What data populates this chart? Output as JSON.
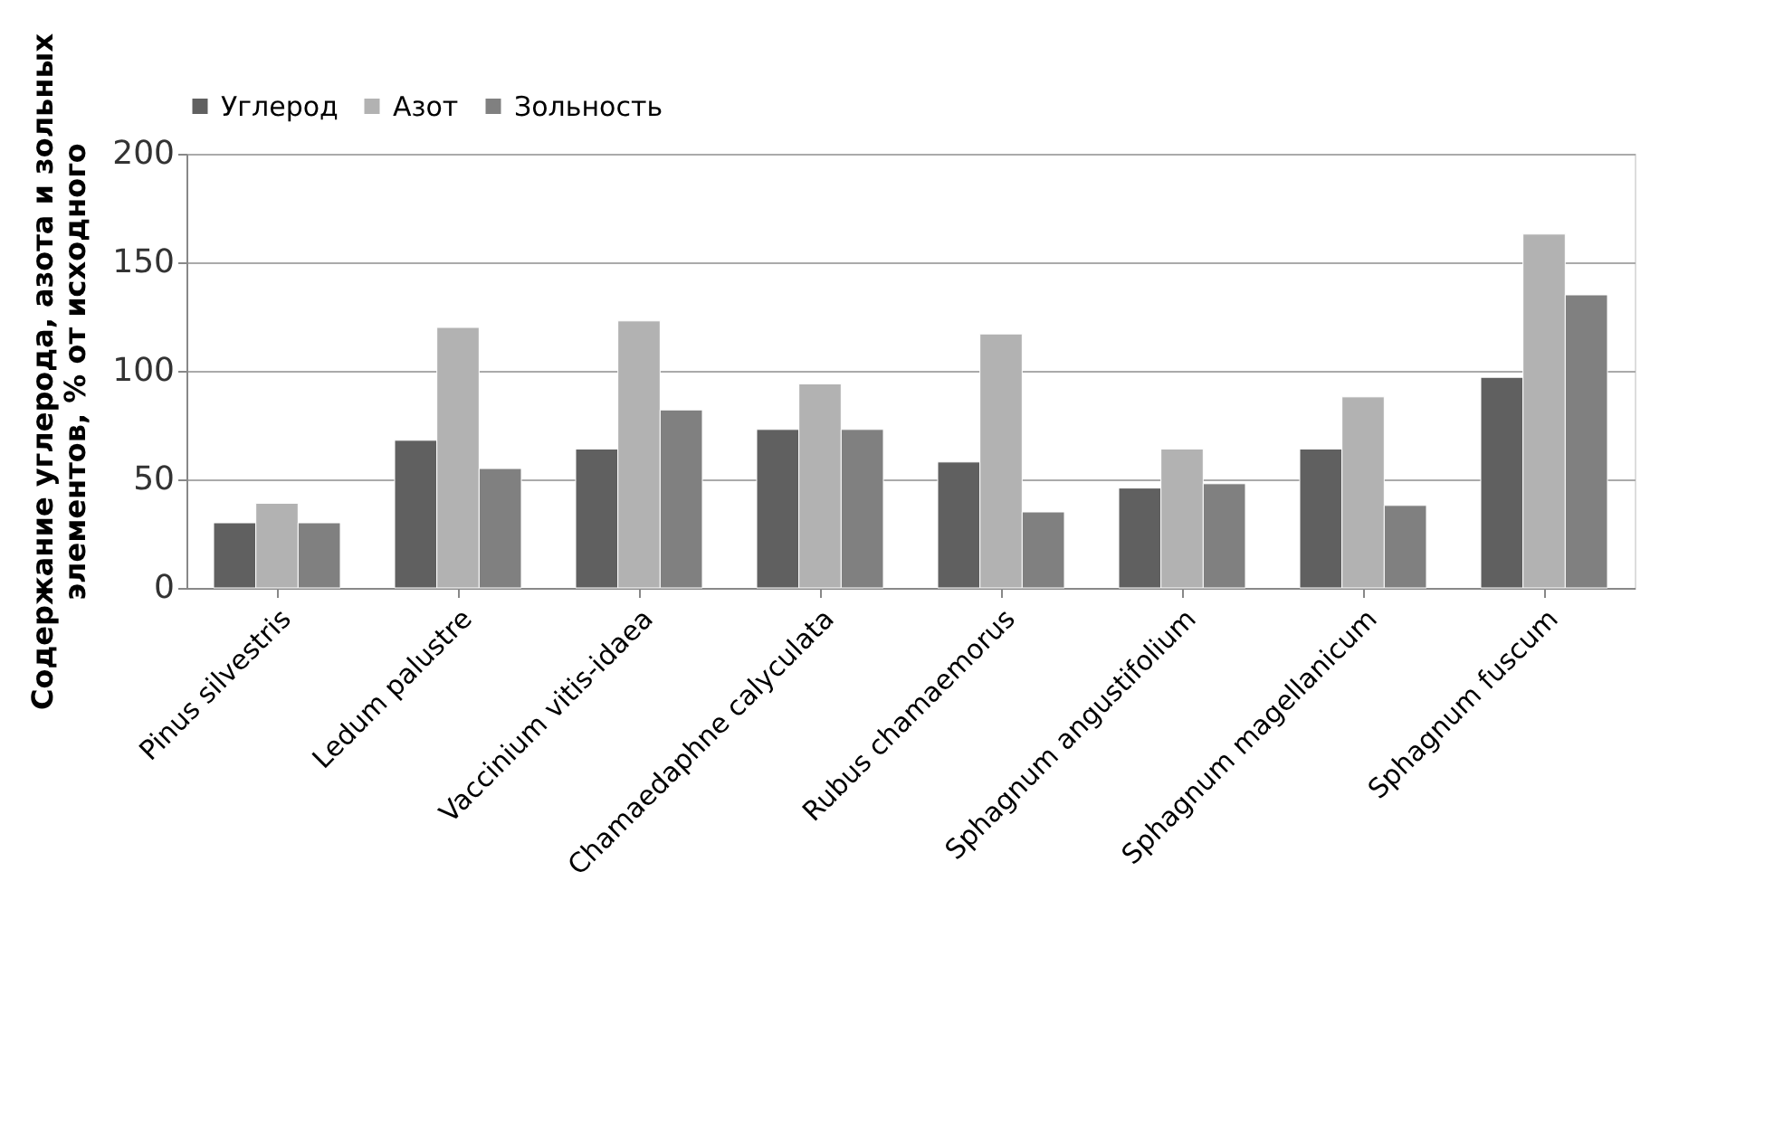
{
  "chart_data": {
    "type": "bar",
    "ylabel": "Содержание углерода, азота  и зольных\nэлементов, % от исходного",
    "categories": [
      "Pinus silvestris",
      "Ledum palustre",
      "Vaccinium vitis-idaea",
      "Chamaedaphne  calyculata",
      "Rubus chamaemorus",
      "Sphagnum angustifolium",
      "Sphagnum magellanicum",
      "Sphagnum fuscum"
    ],
    "series": [
      {
        "name": "Углерод",
        "color": "#606060",
        "values": [
          30,
          68,
          64,
          73,
          58,
          46,
          64,
          97
        ]
      },
      {
        "name": "Азот",
        "color": "#b2b2b2",
        "values": [
          39,
          120,
          123,
          94,
          117,
          64,
          88,
          163
        ]
      },
      {
        "name": "Зольность",
        "color": "#808080",
        "values": [
          30,
          55,
          82,
          73,
          35,
          48,
          38,
          135
        ]
      }
    ],
    "ylim": [
      0,
      200
    ],
    "yticks": [
      0,
      50,
      100,
      150,
      200
    ],
    "grid": "y",
    "legend": "top"
  }
}
